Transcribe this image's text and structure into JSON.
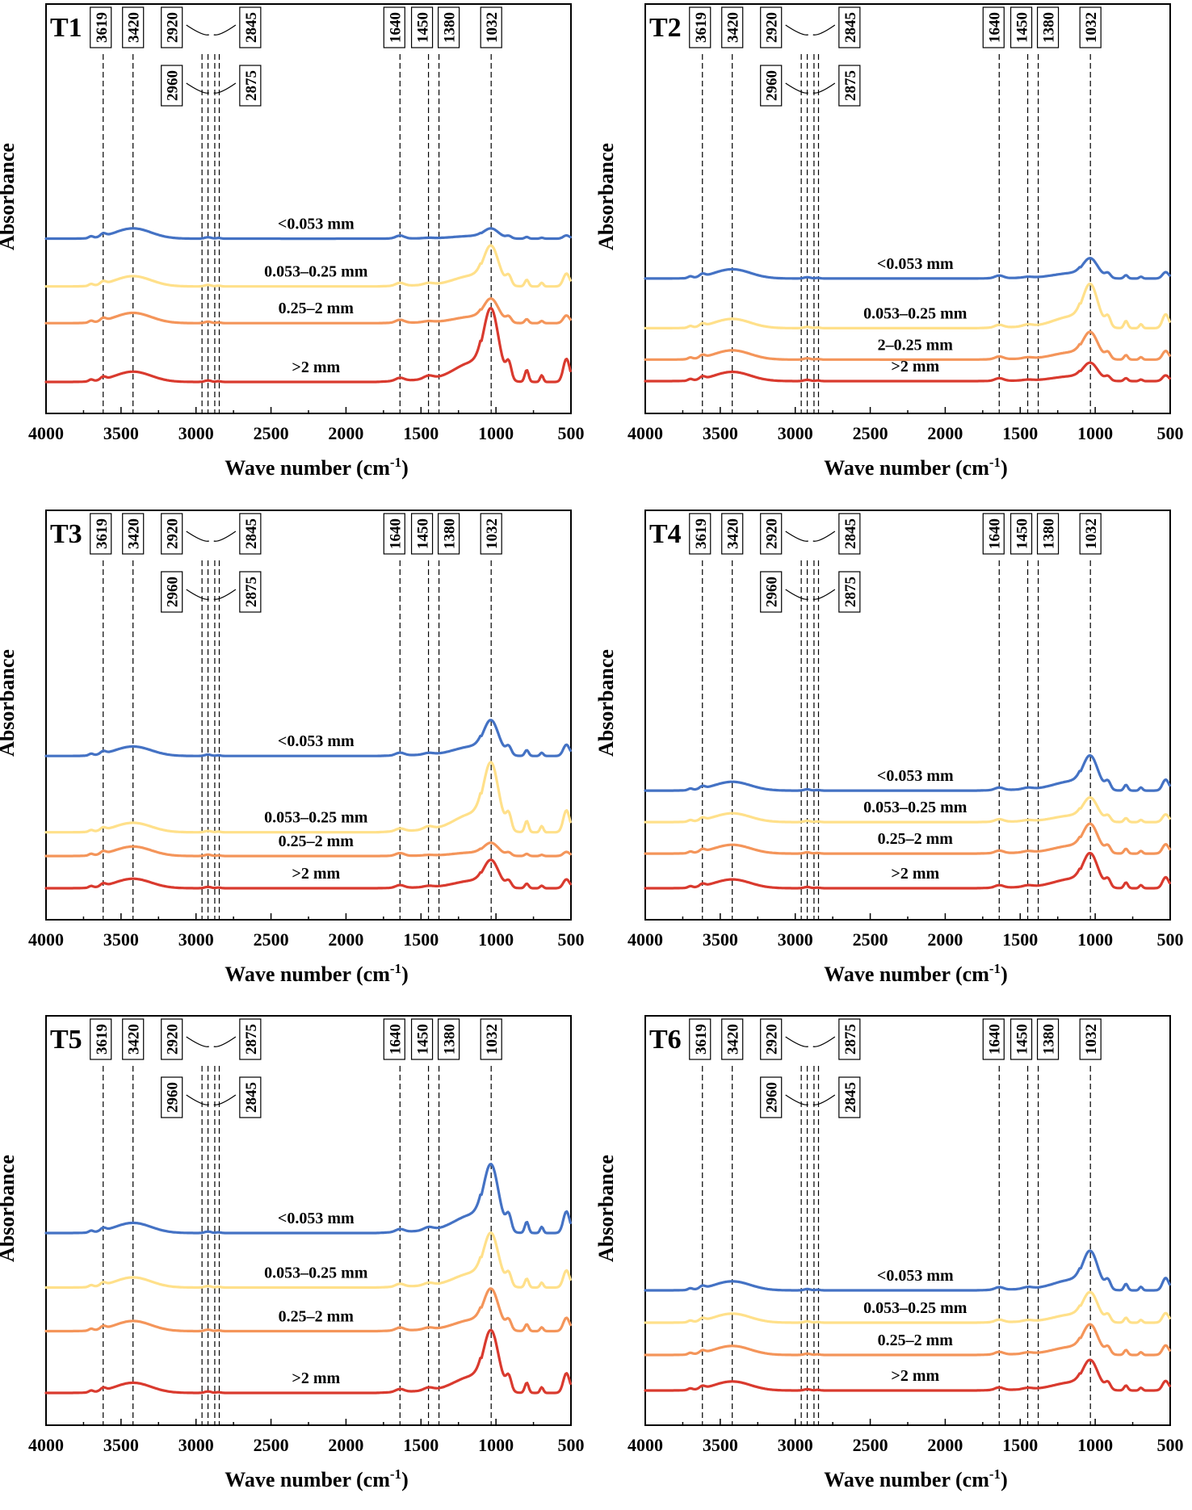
{
  "chart_data": [
    {
      "panel": "T1",
      "type": "line",
      "xlabel": "Wave number",
      "xlabel_unit": "(cm",
      "xlabel_sup": "-1",
      "xlabel_close": ")",
      "ylabel": "Absorbance",
      "xlim": [
        4000,
        500
      ],
      "xticks": [
        "4000",
        "3500",
        "3000",
        "2500",
        "2000",
        "1500",
        "1000",
        "500"
      ],
      "peaks": [
        "3619",
        "3420",
        "2920",
        "2845",
        "2960",
        "2875",
        "1640",
        "1450",
        "1380",
        "1032"
      ],
      "series": [
        {
          "name": "<0.053 mm",
          "color": "#4472C4",
          "offset": 3.9,
          "scale": 0.25
        },
        {
          "name": "0.053–0.25 mm",
          "color": "#FFE08A",
          "offset": 2.6,
          "scale": 1.0
        },
        {
          "name": "0.25–2 mm",
          "color": "#F4955A",
          "offset": 1.6,
          "scale": 0.6
        },
        {
          "name": ">2 mm",
          "color": "#D93A2E",
          "offset": 0.0,
          "scale": 1.8
        }
      ]
    },
    {
      "panel": "T2",
      "type": "line",
      "xlabel": "Wave number",
      "xlabel_unit": "(cm",
      "xlabel_sup": "-1",
      "xlabel_close": ")",
      "ylabel": "Absorbance",
      "xlim": [
        4000,
        500
      ],
      "xticks": [
        "4000",
        "3500",
        "3000",
        "2500",
        "2000",
        "1500",
        "1000",
        "500"
      ],
      "peaks": [
        "3619",
        "3420",
        "2920",
        "2845",
        "2960",
        "2875",
        "1640",
        "1450",
        "1380",
        "1032"
      ],
      "series": [
        {
          "name": "<0.053 mm",
          "color": "#4472C4",
          "offset": 3.1,
          "scale": 0.55
        },
        {
          "name": "0.053–0.25 mm",
          "color": "#FFE08A",
          "offset": 1.6,
          "scale": 1.2
        },
        {
          "name": "2–0.25 mm",
          "color": "#F4955A",
          "offset": 0.65,
          "scale": 0.75
        },
        {
          "name": ">2 mm",
          "color": "#D93A2E",
          "offset": 0.0,
          "scale": 0.5
        }
      ]
    },
    {
      "panel": "T3",
      "type": "line",
      "xlabel": "Wave number",
      "xlabel_unit": "(cm",
      "xlabel_sup": "-1",
      "xlabel_close": ")",
      "ylabel": "Absorbance",
      "xlim": [
        4000,
        500
      ],
      "xticks": [
        "4000",
        "3500",
        "3000",
        "2500",
        "2000",
        "1500",
        "1000",
        "500"
      ],
      "peaks": [
        "3619",
        "3420",
        "2920",
        "2845",
        "2960",
        "2875",
        "1640",
        "1450",
        "1380",
        "1032"
      ],
      "series": [
        {
          "name": "<0.053 mm",
          "color": "#4472C4",
          "offset": 3.9,
          "scale": 0.95
        },
        {
          "name": "0.053–0.25 mm",
          "color": "#FFE08A",
          "offset": 1.65,
          "scale": 1.85
        },
        {
          "name": "0.25–2 mm",
          "color": "#F4955A",
          "offset": 0.95,
          "scale": 0.35
        },
        {
          "name": ">2 mm",
          "color": "#D93A2E",
          "offset": 0.0,
          "scale": 0.75
        }
      ]
    },
    {
      "panel": "T4",
      "type": "line",
      "xlabel": "Wave number",
      "xlabel_unit": "(cm",
      "xlabel_sup": "-1",
      "xlabel_close": ")",
      "ylabel": "Absorbance",
      "xlim": [
        4000,
        500
      ],
      "xticks": [
        "4000",
        "3500",
        "3000",
        "2500",
        "2000",
        "1500",
        "1000",
        "500"
      ],
      "peaks": [
        "3619",
        "3420",
        "2920",
        "2845",
        "2960",
        "2875",
        "1640",
        "1450",
        "1380",
        "1032"
      ],
      "series": [
        {
          "name": "<0.053 mm",
          "color": "#4472C4",
          "offset": 3.1,
          "scale": 1.0
        },
        {
          "name": "0.053–0.25 mm",
          "color": "#FFE08A",
          "offset": 2.1,
          "scale": 0.7
        },
        {
          "name": "0.25–2 mm",
          "color": "#F4955A",
          "offset": 1.1,
          "scale": 0.85
        },
        {
          "name": ">2 mm",
          "color": "#D93A2E",
          "offset": 0.0,
          "scale": 1.0
        }
      ]
    },
    {
      "panel": "T5",
      "type": "line",
      "xlabel": "Wave number",
      "xlabel_unit": "(cm",
      "xlabel_sup": "-1",
      "xlabel_close": ")",
      "ylabel": "Absorbance",
      "xlim": [
        4000,
        500
      ],
      "xticks": [
        "4000",
        "3500",
        "3000",
        "2500",
        "2000",
        "1500",
        "1000",
        "500"
      ],
      "peaks": [
        "3619",
        "3420",
        "2920",
        "2875",
        "2960",
        "2845",
        "1640",
        "1450",
        "1380",
        "1032"
      ],
      "series": [
        {
          "name": "<0.053 mm",
          "color": "#4472C4",
          "offset": 4.4,
          "scale": 1.7
        },
        {
          "name": "0.053–0.25 mm",
          "color": "#FFE08A",
          "offset": 2.9,
          "scale": 1.35
        },
        {
          "name": "0.25–2 mm",
          "color": "#F4955A",
          "offset": 1.7,
          "scale": 1.05
        },
        {
          "name": ">2 mm",
          "color": "#D93A2E",
          "offset": 0.0,
          "scale": 1.55
        }
      ]
    },
    {
      "panel": "T6",
      "type": "line",
      "xlabel": "Wave number",
      "xlabel_unit": "(cm",
      "xlabel_sup": "-1",
      "xlabel_close": ")",
      "ylabel": "Absorbance",
      "xlim": [
        4000,
        500
      ],
      "xticks": [
        "4000",
        "3500",
        "3000",
        "2500",
        "2000",
        "1500",
        "1000",
        "500"
      ],
      "peaks": [
        "3619",
        "3420",
        "2920",
        "2875",
        "2960",
        "2845",
        "1640",
        "1450",
        "1380",
        "1032"
      ],
      "series": [
        {
          "name": "<0.053 mm",
          "color": "#4472C4",
          "offset": 3.1,
          "scale": 1.1
        },
        {
          "name": "0.053–0.25 mm",
          "color": "#FFE08A",
          "offset": 2.1,
          "scale": 0.85
        },
        {
          "name": "0.25–2 mm",
          "color": "#F4955A",
          "offset": 1.1,
          "scale": 0.85
        },
        {
          "name": ">2 mm",
          "color": "#D93A2E",
          "offset": 0.0,
          "scale": 0.85
        }
      ]
    }
  ]
}
